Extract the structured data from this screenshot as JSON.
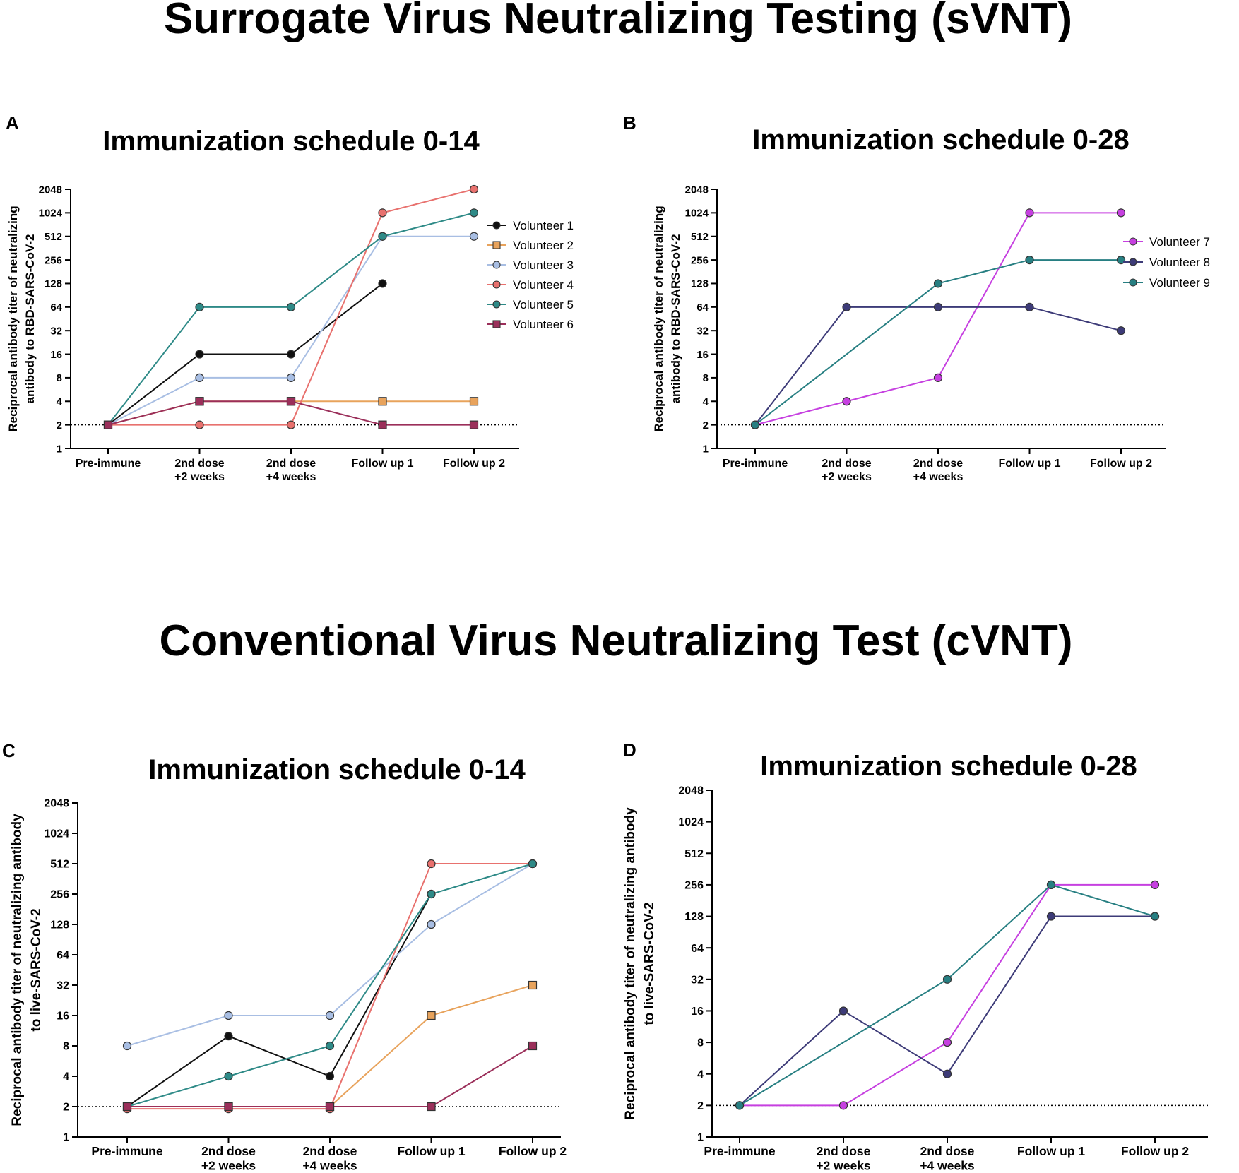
{
  "sections": {
    "svnt_title": "Surrogate Virus Neutralizing Testing (sVNT)",
    "cvnt_title": "Conventional Virus Neutralizing Test (cVNT)"
  },
  "colors": {
    "Volunteer 1": "#111111",
    "Volunteer 2": "#e8a35c",
    "Volunteer 3": "#a8bee3",
    "Volunteer 4": "#e8716e",
    "Volunteer 5": "#2e8a87",
    "Volunteer 6": "#9b2f5a",
    "Volunteer 7": "#c640e0",
    "Volunteer 8": "#3d3b78",
    "Volunteer 9": "#277f82"
  },
  "chart_data": [
    {
      "id": "A",
      "type": "line",
      "panel_letter": "A",
      "title": "Immunization schedule 0-14",
      "ylabel": [
        "Reciprocal antibody titer of neutralizing",
        "antibody to RBD-SARS-CoV-2"
      ],
      "xlabel": "",
      "yscale": "log2",
      "ylim": [
        1,
        2048
      ],
      "yticks": [
        "1",
        "2",
        "4",
        "8",
        "16",
        "32",
        "64",
        "128",
        "256",
        "512",
        "1024",
        "2048"
      ],
      "categories": [
        [
          "Pre-immune"
        ],
        [
          "2nd dose",
          "+2 weeks"
        ],
        [
          "2nd dose",
          "+4 weeks"
        ],
        [
          "Follow up 1"
        ],
        [
          "Follow up 2"
        ]
      ],
      "baseline": 2,
      "legend": "right",
      "series": [
        {
          "name": "Volunteer 1",
          "marker": "circle",
          "values": [
            2,
            16,
            16,
            128,
            null
          ]
        },
        {
          "name": "Volunteer 2",
          "marker": "square",
          "values": [
            2,
            4,
            4,
            4,
            4
          ]
        },
        {
          "name": "Volunteer 3",
          "marker": "circle",
          "values": [
            2,
            8,
            8,
            512,
            512
          ]
        },
        {
          "name": "Volunteer 4",
          "marker": "circle",
          "values": [
            2,
            2,
            2,
            1024,
            2048
          ]
        },
        {
          "name": "Volunteer 5",
          "marker": "circle",
          "values": [
            2,
            64,
            64,
            512,
            1024
          ]
        },
        {
          "name": "Volunteer 6",
          "marker": "square",
          "values": [
            2,
            4,
            4,
            2,
            2
          ]
        }
      ]
    },
    {
      "id": "B",
      "type": "line",
      "panel_letter": "B",
      "title": "Immunization schedule 0-28",
      "ylabel": [
        "Reciprocal antibody titer of neutralizing",
        "antibody to RBD-SARS-CoV-2"
      ],
      "xlabel": "",
      "yscale": "log2",
      "ylim": [
        1,
        2048
      ],
      "yticks": [
        "1",
        "2",
        "4",
        "8",
        "16",
        "32",
        "64",
        "128",
        "256",
        "512",
        "1024",
        "2048"
      ],
      "categories": [
        [
          "Pre-immune"
        ],
        [
          "2nd dose",
          "+2 weeks"
        ],
        [
          "2nd dose",
          "+4 weeks"
        ],
        [
          "Follow up 1"
        ],
        [
          "Follow up 2"
        ]
      ],
      "baseline": 2,
      "legend": "right",
      "series": [
        {
          "name": "Volunteer 7",
          "marker": "circle",
          "values": [
            2,
            4,
            8,
            1024,
            1024
          ]
        },
        {
          "name": "Volunteer 8",
          "marker": "circle",
          "values": [
            2,
            64,
            64,
            64,
            32
          ]
        },
        {
          "name": "Volunteer 9",
          "marker": "circle",
          "values": [
            2,
            null,
            128,
            256,
            256
          ]
        }
      ]
    },
    {
      "id": "C",
      "type": "line",
      "panel_letter": "C",
      "title": "Immunization schedule 0-14",
      "ylabel": [
        "Reciprocal antibody titer  of neutralizing antibody",
        "to live-SARS-CoV-2"
      ],
      "xlabel": "",
      "yscale": "log2",
      "ylim": [
        1,
        2048
      ],
      "yticks": [
        "1",
        "2",
        "4",
        "8",
        "16",
        "32",
        "64",
        "128",
        "256",
        "512",
        "1024",
        "2048"
      ],
      "categories": [
        [
          "Pre-immune"
        ],
        [
          "2nd dose",
          "+2 weeks"
        ],
        [
          "2nd dose",
          "+4 weeks"
        ],
        [
          "Follow up 1"
        ],
        [
          "Follow up 2"
        ]
      ],
      "baseline": 2,
      "legend": "none",
      "series": [
        {
          "name": "Volunteer 1",
          "marker": "circle",
          "values": [
            2,
            10,
            4,
            256,
            null
          ]
        },
        {
          "name": "Volunteer 2",
          "marker": "square",
          "values": [
            2,
            2,
            2,
            16,
            32
          ]
        },
        {
          "name": "Volunteer 3",
          "marker": "circle",
          "values": [
            8,
            16,
            16,
            128,
            512
          ]
        },
        {
          "name": "Volunteer 4",
          "marker": "circle",
          "values": [
            1.9,
            1.9,
            1.9,
            512,
            512
          ]
        },
        {
          "name": "Volunteer 5",
          "marker": "circle",
          "values": [
            2,
            4,
            8,
            256,
            512
          ]
        },
        {
          "name": "Volunteer 6",
          "marker": "square",
          "values": [
            2,
            2,
            2,
            2,
            8
          ]
        }
      ]
    },
    {
      "id": "D",
      "type": "line",
      "panel_letter": "D",
      "title": "Immunization schedule 0-28",
      "ylabel": [
        "Reciprocal antibody titer  of neutralizing antibody",
        "to live-SARS-CoV-2"
      ],
      "xlabel": "",
      "yscale": "log2",
      "ylim": [
        1,
        2048
      ],
      "yticks": [
        "1",
        "2",
        "4",
        "8",
        "16",
        "32",
        "64",
        "128",
        "256",
        "512",
        "1024",
        "2048"
      ],
      "categories": [
        [
          "Pre-immune"
        ],
        [
          "2nd dose",
          "+2 weeks"
        ],
        [
          "2nd dose",
          "+4 weeks"
        ],
        [
          "Follow up 1"
        ],
        [
          "Follow up 2"
        ]
      ],
      "baseline": 2,
      "legend": "none",
      "series": [
        {
          "name": "Volunteer 7",
          "marker": "circle",
          "values": [
            2,
            2,
            8,
            256,
            256
          ]
        },
        {
          "name": "Volunteer 8",
          "marker": "circle",
          "values": [
            2,
            16,
            4,
            128,
            128
          ]
        },
        {
          "name": "Volunteer 9",
          "marker": "circle",
          "values": [
            2,
            null,
            32,
            256,
            128
          ]
        }
      ]
    }
  ]
}
